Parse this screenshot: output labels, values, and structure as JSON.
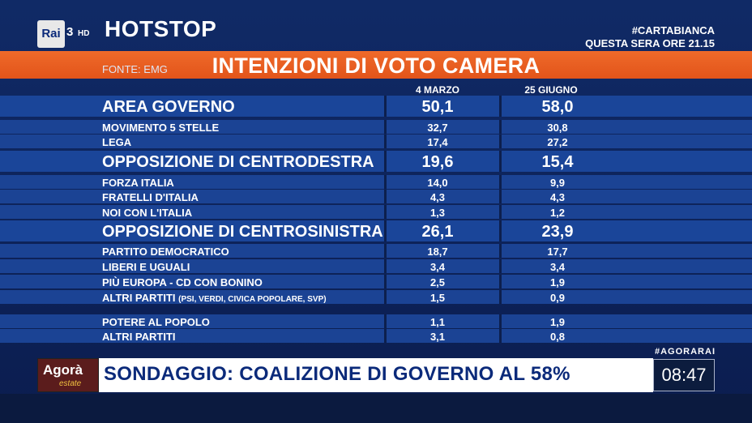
{
  "header": {
    "channel_logo": "Rai",
    "channel_number": "3",
    "channel_hd": "HD",
    "program": "HOTSTOP",
    "promo_line1": "#CARTABIANCA",
    "promo_line2": "QUESTA SERA ORE 21.15"
  },
  "title": "INTENZIONI DI VOTO CAMERA",
  "source": "FONTE: EMG",
  "columns": [
    "4 MARZO",
    "25 GIUGNO"
  ],
  "rows": [
    {
      "label": "AREA GOVERNO",
      "v1": "50,1",
      "v2": "58,0",
      "style": "big"
    },
    {
      "label": "MOVIMENTO 5 STELLE",
      "v1": "32,7",
      "v2": "30,8",
      "style": "small"
    },
    {
      "label": "LEGA",
      "v1": "17,4",
      "v2": "27,2",
      "style": "small"
    },
    {
      "label": "OPPOSIZIONE DI CENTRODESTRA",
      "v1": "19,6",
      "v2": "15,4",
      "style": "big"
    },
    {
      "label": "FORZA ITALIA",
      "v1": "14,0",
      "v2": "9,9",
      "style": "small"
    },
    {
      "label": "FRATELLI D'ITALIA",
      "v1": "4,3",
      "v2": "4,3",
      "style": "small"
    },
    {
      "label": "NOI CON L'ITALIA",
      "v1": "1,3",
      "v2": "1,2",
      "style": "small"
    },
    {
      "label": "OPPOSIZIONE DI CENTROSINISTRA",
      "v1": "26,1",
      "v2": "23,9",
      "style": "big"
    },
    {
      "label": "PARTITO DEMOCRATICO",
      "v1": "18,7",
      "v2": "17,7",
      "style": "small"
    },
    {
      "label": "LIBERI E UGUALI",
      "v1": "3,4",
      "v2": "3,4",
      "style": "small"
    },
    {
      "label": "PIÙ EUROPA - CD CON BONINO",
      "v1": "2,5",
      "v2": "1,9",
      "style": "small"
    },
    {
      "label": "ALTRI PARTITI",
      "sublabel": "(PSI, VERDI, CIVICA POPOLARE, SVP)",
      "v1": "1,5",
      "v2": "0,9",
      "style": "small"
    },
    {
      "label": "POTERE AL POPOLO",
      "v1": "1,1",
      "v2": "1,9",
      "style": "small"
    },
    {
      "label": "ALTRI PARTITI",
      "v1": "3,1",
      "v2": "0,8",
      "style": "small"
    }
  ],
  "ticker": {
    "logo_name": "Agorà",
    "logo_sub": "estate",
    "text": "SONDAGGIO: COALIZIONE DI GOVERNO AL 58%",
    "hashtag": "#AGORARAI",
    "clock": "08:47"
  }
}
